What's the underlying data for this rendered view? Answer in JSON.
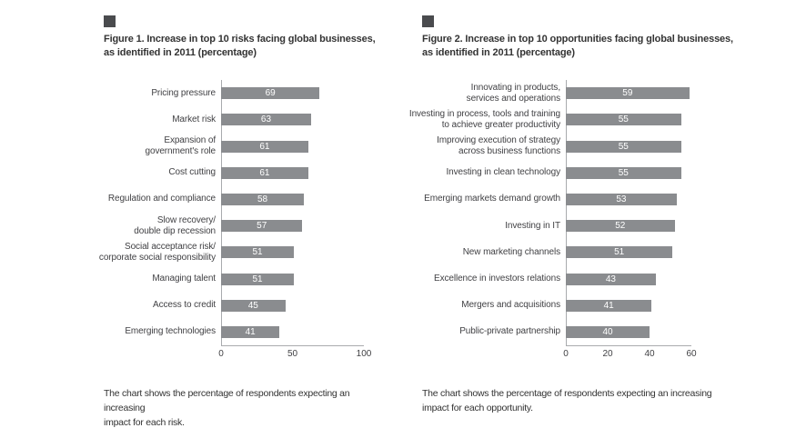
{
  "styles": {
    "page_bg": "#ffffff",
    "bullet_color": "#4a4b4e",
    "title_color": "#333333",
    "text_color": "#414144",
    "bar_color": "#8a8c8f",
    "bar_value_color": "#ffffff",
    "axis_color": "#a9abae"
  },
  "chart_data": [
    {
      "type": "bar",
      "orientation": "horizontal",
      "title": "Figure 1. Increase in top 10 risks facing global businesses,\nas identified in 2011 (percentage)",
      "caption": "The chart shows the percentage of respondents expecting an increasing\nimpact for each risk.",
      "categories": [
        "Pricing pressure",
        "Market risk",
        "Expansion of\ngovernment's role",
        "Cost cutting",
        "Regulation and compliance",
        "Slow recovery/\ndouble dip recession",
        "Social acceptance risk/\ncorporate social responsibility",
        "Managing talent",
        "Access to credit",
        "Emerging technologies"
      ],
      "values": [
        69,
        63,
        61,
        61,
        58,
        57,
        51,
        51,
        45,
        41
      ],
      "value_labels_shown": true,
      "xlim": [
        0,
        100
      ],
      "x_ticks": [
        0,
        50,
        100
      ],
      "grid": false,
      "legend": false
    },
    {
      "type": "bar",
      "orientation": "horizontal",
      "title": "Figure 2. Increase in top 10 opportunities facing global businesses,\nas identified in 2011 (percentage)",
      "caption": "The chart shows the percentage of respondents expecting an increasing\nimpact for each opportunity.",
      "categories": [
        "Innovating in products,\nservices and operations",
        "Investing in process, tools and training\nto achieve greater productivity",
        "Improving execution of strategy\nacross business functions",
        "Investing in clean technology",
        "Emerging markets demand growth",
        "Investing in IT",
        "New marketing channels",
        "Excellence in investors relations",
        "Mergers and acquisitions",
        "Public-private partnership"
      ],
      "values": [
        59,
        55,
        55,
        55,
        53,
        52,
        51,
        43,
        41,
        40
      ],
      "value_labels_shown": true,
      "xlim": [
        0,
        60
      ],
      "x_ticks": [
        0,
        20,
        40,
        60
      ],
      "grid": false,
      "legend": false
    }
  ]
}
